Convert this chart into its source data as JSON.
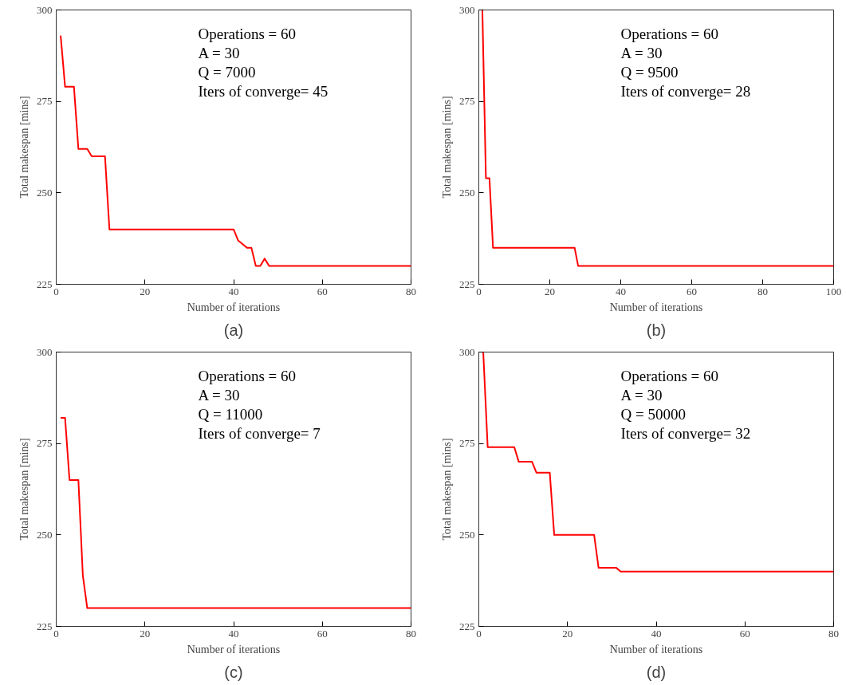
{
  "chart_data": [
    {
      "type": "line",
      "title": "(a)",
      "xlabel": "Number of iterations",
      "ylabel": "Total makespan [mins]",
      "x": [
        1,
        2,
        4,
        5,
        7,
        8,
        11,
        12,
        40,
        41,
        42,
        43,
        44,
        45,
        46,
        47,
        48,
        80
      ],
      "series": [
        {
          "color": "#ff0000",
          "values": [
            293,
            279,
            279,
            262,
            262,
            260,
            260,
            240,
            240,
            237,
            236,
            235,
            235,
            230,
            230,
            232,
            230,
            230
          ]
        }
      ],
      "xlim": [
        0,
        80
      ],
      "xticks": [
        0,
        20,
        40,
        60,
        80
      ],
      "ylim": [
        225,
        300
      ],
      "yticks": [
        225,
        250,
        275,
        300
      ],
      "grid": false,
      "marker": "none",
      "line_style": "solid",
      "annotations": [
        "Operations = 60",
        "A = 30",
        "Q = 7000",
        "Iters of converge= 45"
      ]
    },
    {
      "type": "line",
      "title": "(b)",
      "xlabel": "Number of iterations",
      "ylabel": "Total makespan [mins]",
      "x": [
        1,
        2,
        3,
        4,
        27,
        28,
        100
      ],
      "series": [
        {
          "color": "#ff0000",
          "values": [
            300,
            254,
            254,
            235,
            235,
            230,
            230
          ]
        }
      ],
      "xlim": [
        0,
        100
      ],
      "xticks": [
        0,
        20,
        40,
        60,
        80,
        100
      ],
      "ylim": [
        225,
        300
      ],
      "yticks": [
        225,
        250,
        275,
        300
      ],
      "grid": false,
      "marker": "none",
      "line_style": "solid",
      "annotations": [
        "Operations = 60",
        "A = 30",
        "Q = 9500",
        "Iters of converge= 28"
      ]
    },
    {
      "type": "line",
      "title": "(c)",
      "xlabel": "Number of iterations",
      "ylabel": "Total makespan [mins]",
      "x": [
        1,
        2,
        3,
        5,
        6,
        7,
        80
      ],
      "series": [
        {
          "color": "#ff0000",
          "values": [
            282,
            282,
            265,
            265,
            239,
            230,
            230
          ]
        }
      ],
      "xlim": [
        0,
        80
      ],
      "xticks": [
        0,
        20,
        40,
        60,
        80
      ],
      "ylim": [
        225,
        300
      ],
      "yticks": [
        225,
        250,
        275,
        300
      ],
      "grid": false,
      "marker": "none",
      "line_style": "solid",
      "annotations": [
        "Operations = 60",
        "A = 30",
        "Q = 11000",
        "Iters of converge= 7"
      ]
    },
    {
      "type": "line",
      "title": "(d)",
      "xlabel": "Number of iterations",
      "ylabel": "Total makespan [mins]",
      "x": [
        1,
        2,
        8,
        9,
        12,
        13,
        16,
        17,
        26,
        27,
        31,
        32,
        80
      ],
      "series": [
        {
          "color": "#ff0000",
          "values": [
            300,
            274,
            274,
            270,
            270,
            267,
            267,
            250,
            250,
            241,
            241,
            240,
            240
          ]
        }
      ],
      "xlim": [
        0,
        80
      ],
      "xticks": [
        0,
        20,
        40,
        60,
        80
      ],
      "ylim": [
        225,
        300
      ],
      "yticks": [
        225,
        250,
        275,
        300
      ],
      "grid": false,
      "marker": "none",
      "line_style": "solid",
      "annotations": [
        "Operations = 60",
        "A = 30",
        "Q = 50000",
        "Iters of converge= 32"
      ]
    }
  ]
}
